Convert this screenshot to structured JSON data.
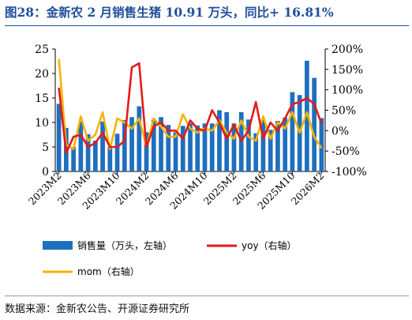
{
  "title": "图28：金新农 2 月销售生猪 10.91 万头，同比+ 16.81%",
  "source": "数据来源：金新农公告、开源证券研究所",
  "colors": {
    "title": "#1f4e9c",
    "bar": "#1f6fbf",
    "yoy": "#e31a1c",
    "mom": "#f5b400"
  },
  "chart_data": {
    "type": "bar",
    "x": [
      "2023M2",
      "2023M3",
      "2023M4",
      "2023M5",
      "2023M6",
      "2023M7",
      "2023M8",
      "2023M9",
      "2023M10",
      "2023M11",
      "2023M12",
      "2024M1",
      "2024M2",
      "2024M3",
      "2024M4",
      "2024M5",
      "2024M6",
      "2024M7",
      "2024M8",
      "2024M9",
      "2024M10",
      "2024M11",
      "2024M12",
      "2025M1",
      "2025M2",
      "2025M3",
      "2025M4",
      "2025M5",
      "2025M6",
      "2025M7",
      "2025M8",
      "2025M9",
      "2025M10",
      "2025M11",
      "2025M12",
      "2026M1",
      "2026M2"
    ],
    "x_tick_labels": [
      "2023M2",
      "2023M6",
      "2023M10",
      "2024M2",
      "2024M6",
      "2024M10",
      "2025M2",
      "2025M6",
      "2025M10",
      "2026M2"
    ],
    "left_axis": {
      "ylim": [
        0,
        25
      ],
      "ticks": [
        "0",
        "5",
        "10",
        "15",
        "20",
        "25"
      ]
    },
    "right_axis": {
      "ylim": [
        -100,
        200
      ],
      "ticks": [
        "-100%",
        "-50%",
        "0%",
        "50%",
        "100%",
        "150%",
        "200%"
      ]
    },
    "series": [
      {
        "name": "销售量（万头，左轴）",
        "type": "bar",
        "axis": "left",
        "values": [
          13.8,
          8.9,
          5.0,
          10.2,
          7.6,
          6.3,
          10.2,
          5.0,
          7.7,
          10.5,
          11.1,
          13.3,
          8.0,
          10.6,
          11.1,
          9.5,
          8.0,
          9.3,
          9.8,
          9.4,
          9.8,
          9.8,
          12.5,
          12.1,
          9.8,
          12.1,
          10.6,
          7.8,
          10.6,
          8.5,
          10.3,
          11.0,
          16.2,
          15.6,
          22.6,
          19.1,
          10.9
        ]
      },
      {
        "name": "yoy（右轴）",
        "type": "line",
        "axis": "right",
        "values": [
          105,
          -55,
          -15,
          -10,
          -40,
          -30,
          -5,
          -40,
          -40,
          -25,
          155,
          165,
          -40,
          10,
          20,
          0,
          0,
          -20,
          25,
          5,
          0,
          50,
          20,
          -20,
          15,
          -25,
          0,
          70,
          -20,
          20,
          0,
          30,
          65,
          70,
          80,
          65,
          17
        ]
      },
      {
        "name": "mom（右轴）",
        "type": "line",
        "axis": "right",
        "values": [
          175,
          -35,
          -45,
          35,
          -25,
          -10,
          45,
          -45,
          30,
          20,
          5,
          30,
          -40,
          30,
          10,
          -15,
          -15,
          40,
          5,
          -5,
          5,
          0,
          25,
          -5,
          -20,
          25,
          -15,
          -25,
          35,
          -20,
          20,
          5,
          45,
          -5,
          45,
          -15,
          -43
        ]
      }
    ],
    "legend_placement": "bottom",
    "grid": false
  }
}
